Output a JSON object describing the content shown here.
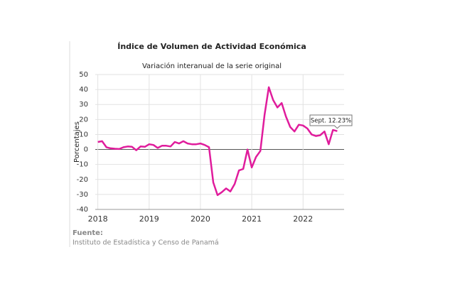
{
  "chart_data": {
    "type": "line",
    "title": "Índice de Volumen de  Actividad Económica",
    "subtitle": "Variación interanual de la serie original",
    "ylabel": "Porcentajes",
    "annotation": "Sept. 12.23%",
    "source_label": "Fuente:",
    "source": "Instituto de Estadística y Censo de Panamá",
    "x": [
      2018,
      2018.083,
      2018.167,
      2018.25,
      2018.333,
      2018.417,
      2018.5,
      2018.583,
      2018.667,
      2018.75,
      2018.833,
      2018.917,
      2019,
      2019.083,
      2019.167,
      2019.25,
      2019.333,
      2019.417,
      2019.5,
      2019.583,
      2019.667,
      2019.75,
      2019.833,
      2019.917,
      2020,
      2020.083,
      2020.167,
      2020.25,
      2020.333,
      2020.417,
      2020.5,
      2020.583,
      2020.667,
      2020.75,
      2020.833,
      2020.917,
      2021,
      2021.083,
      2021.167,
      2021.25,
      2021.333,
      2021.417,
      2021.5,
      2021.583,
      2021.667,
      2021.75,
      2021.833,
      2021.917,
      2022,
      2022.083,
      2022.167,
      2022.25,
      2022.333,
      2022.417,
      2022.5,
      2022.583,
      2022.667
    ],
    "series": [
      {
        "name": "Variación interanual",
        "color": "#e01c9c",
        "values": [
          5,
          5.5,
          1.5,
          0.8,
          0.5,
          0.3,
          1.5,
          2,
          1.8,
          -0.5,
          2,
          1.8,
          3.5,
          3,
          1,
          2.5,
          2.5,
          2,
          5,
          4,
          5.5,
          4,
          3.5,
          3.5,
          4,
          3,
          1.5,
          -22,
          -30.5,
          -28.5,
          -26,
          -28,
          -23,
          -14,
          -13,
          0,
          -12,
          -5,
          -1,
          23,
          41.5,
          33,
          28,
          31,
          22,
          15,
          12,
          16.5,
          16,
          14,
          10,
          9,
          9.5,
          12,
          3.5,
          13,
          12.23
        ]
      }
    ],
    "xlim": [
      2017.95,
      2022.8
    ],
    "xticks": [
      2018,
      2019,
      2020,
      2021,
      2022
    ],
    "ylim": [
      -40,
      50
    ],
    "yticks": [
      50,
      40,
      30,
      20,
      10,
      0,
      -10,
      -20,
      -30,
      -40
    ],
    "grid": true
  }
}
